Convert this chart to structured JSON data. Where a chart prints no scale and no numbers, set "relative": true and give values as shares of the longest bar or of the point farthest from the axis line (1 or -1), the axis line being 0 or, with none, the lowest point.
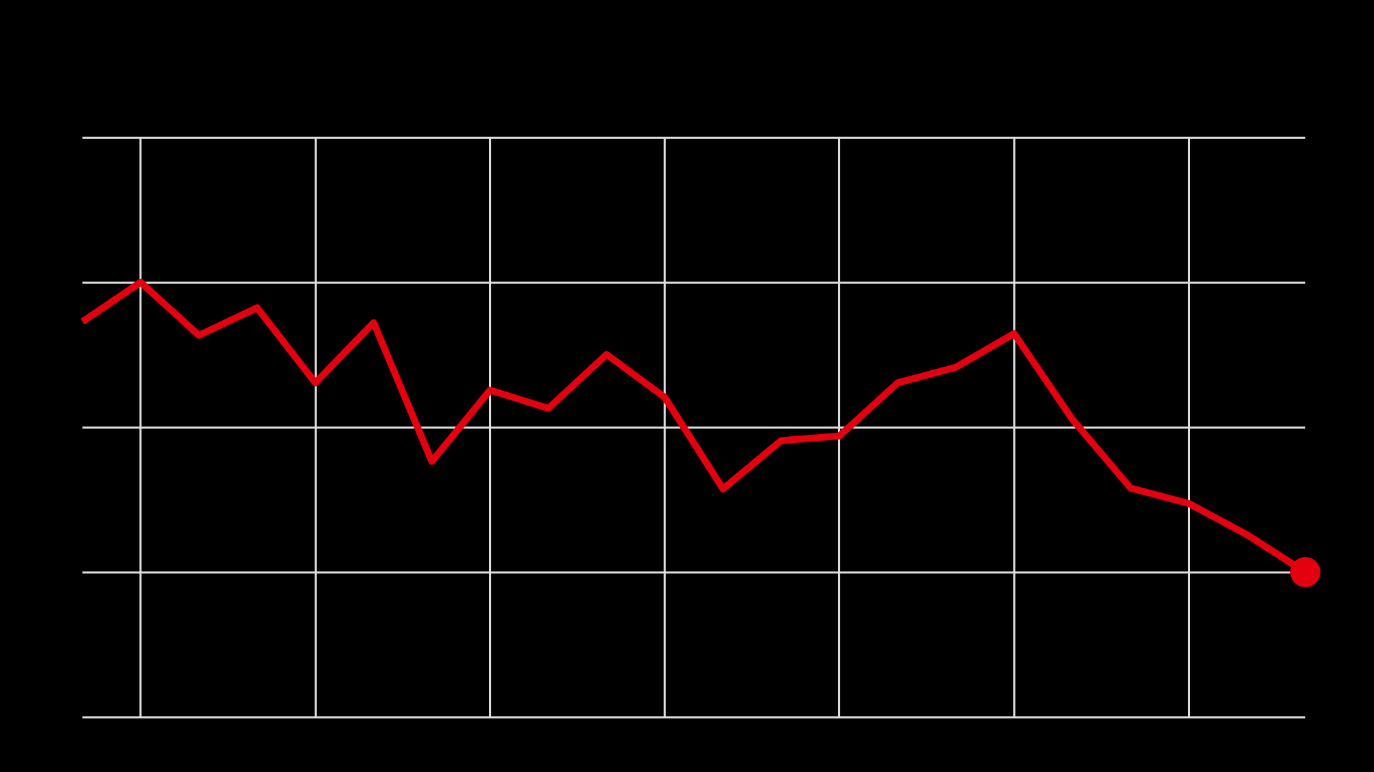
{
  "chart_data": {
    "type": "line",
    "relative": true,
    "grid": true,
    "marker": "none",
    "line_style": "solid",
    "categories": [
      null,
      null,
      null,
      null,
      null,
      null,
      null,
      null,
      null,
      null,
      null,
      null,
      null,
      null,
      null,
      null,
      null,
      null,
      null,
      null,
      null,
      null
    ],
    "series": [
      {
        "color": "#e3000f",
        "values": [
          0.864,
          1,
          0.817,
          0.912,
          0.653,
          0.861,
          0.382,
          0.628,
          0.565,
          0.751,
          0.603,
          0.287,
          0.454,
          0.47,
          0.653,
          0.707,
          0.823,
          0.527,
          0.29,
          0.237,
          0.129,
          0
        ]
      }
    ]
  }
}
